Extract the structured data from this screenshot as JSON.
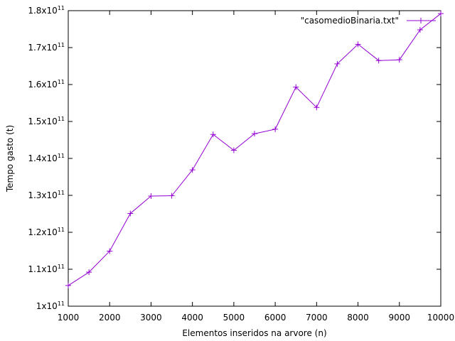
{
  "chart_data": {
    "type": "line",
    "xlabel": "Elementos inseridos na arvore (n)",
    "ylabel": "Tempo gasto (t)",
    "xlim": [
      1000,
      10000
    ],
    "ylim": [
      100000000000,
      180000000000
    ],
    "x_ticks": [
      1000,
      2000,
      3000,
      4000,
      5000,
      6000,
      7000,
      8000,
      9000,
      10000
    ],
    "y_ticks": [
      {
        "value": 100000000000,
        "mantissa": "1",
        "exp": "11"
      },
      {
        "value": 110000000000,
        "mantissa": "1.1",
        "exp": "11"
      },
      {
        "value": 120000000000,
        "mantissa": "1.2",
        "exp": "11"
      },
      {
        "value": 130000000000,
        "mantissa": "1.3",
        "exp": "11"
      },
      {
        "value": 140000000000,
        "mantissa": "1.4",
        "exp": "11"
      },
      {
        "value": 150000000000,
        "mantissa": "1.5",
        "exp": "11"
      },
      {
        "value": 160000000000,
        "mantissa": "1.6",
        "exp": "11"
      },
      {
        "value": 170000000000,
        "mantissa": "1.7",
        "exp": "11"
      },
      {
        "value": 180000000000,
        "mantissa": "1.8",
        "exp": "11"
      }
    ],
    "tick_prefix": "x10",
    "grid": false,
    "legend_position": "top-right",
    "series": [
      {
        "name": "\"casomedioBinaria.txt\"",
        "color": "#9400d3",
        "marker": "plus",
        "x": [
          1000,
          1500,
          2000,
          2500,
          3000,
          3500,
          4000,
          4500,
          5000,
          5500,
          6000,
          6500,
          7000,
          7500,
          8000,
          8500,
          9000,
          9500,
          10000
        ],
        "y": [
          105600000000,
          109200000000,
          114900000000,
          125100000000,
          129800000000,
          129900000000,
          136900000000,
          146500000000,
          142200000000,
          146700000000,
          147900000000,
          159300000000,
          153800000000,
          165600000000,
          170900000000,
          166500000000,
          166700000000,
          174800000000,
          179200000000
        ]
      }
    ]
  }
}
